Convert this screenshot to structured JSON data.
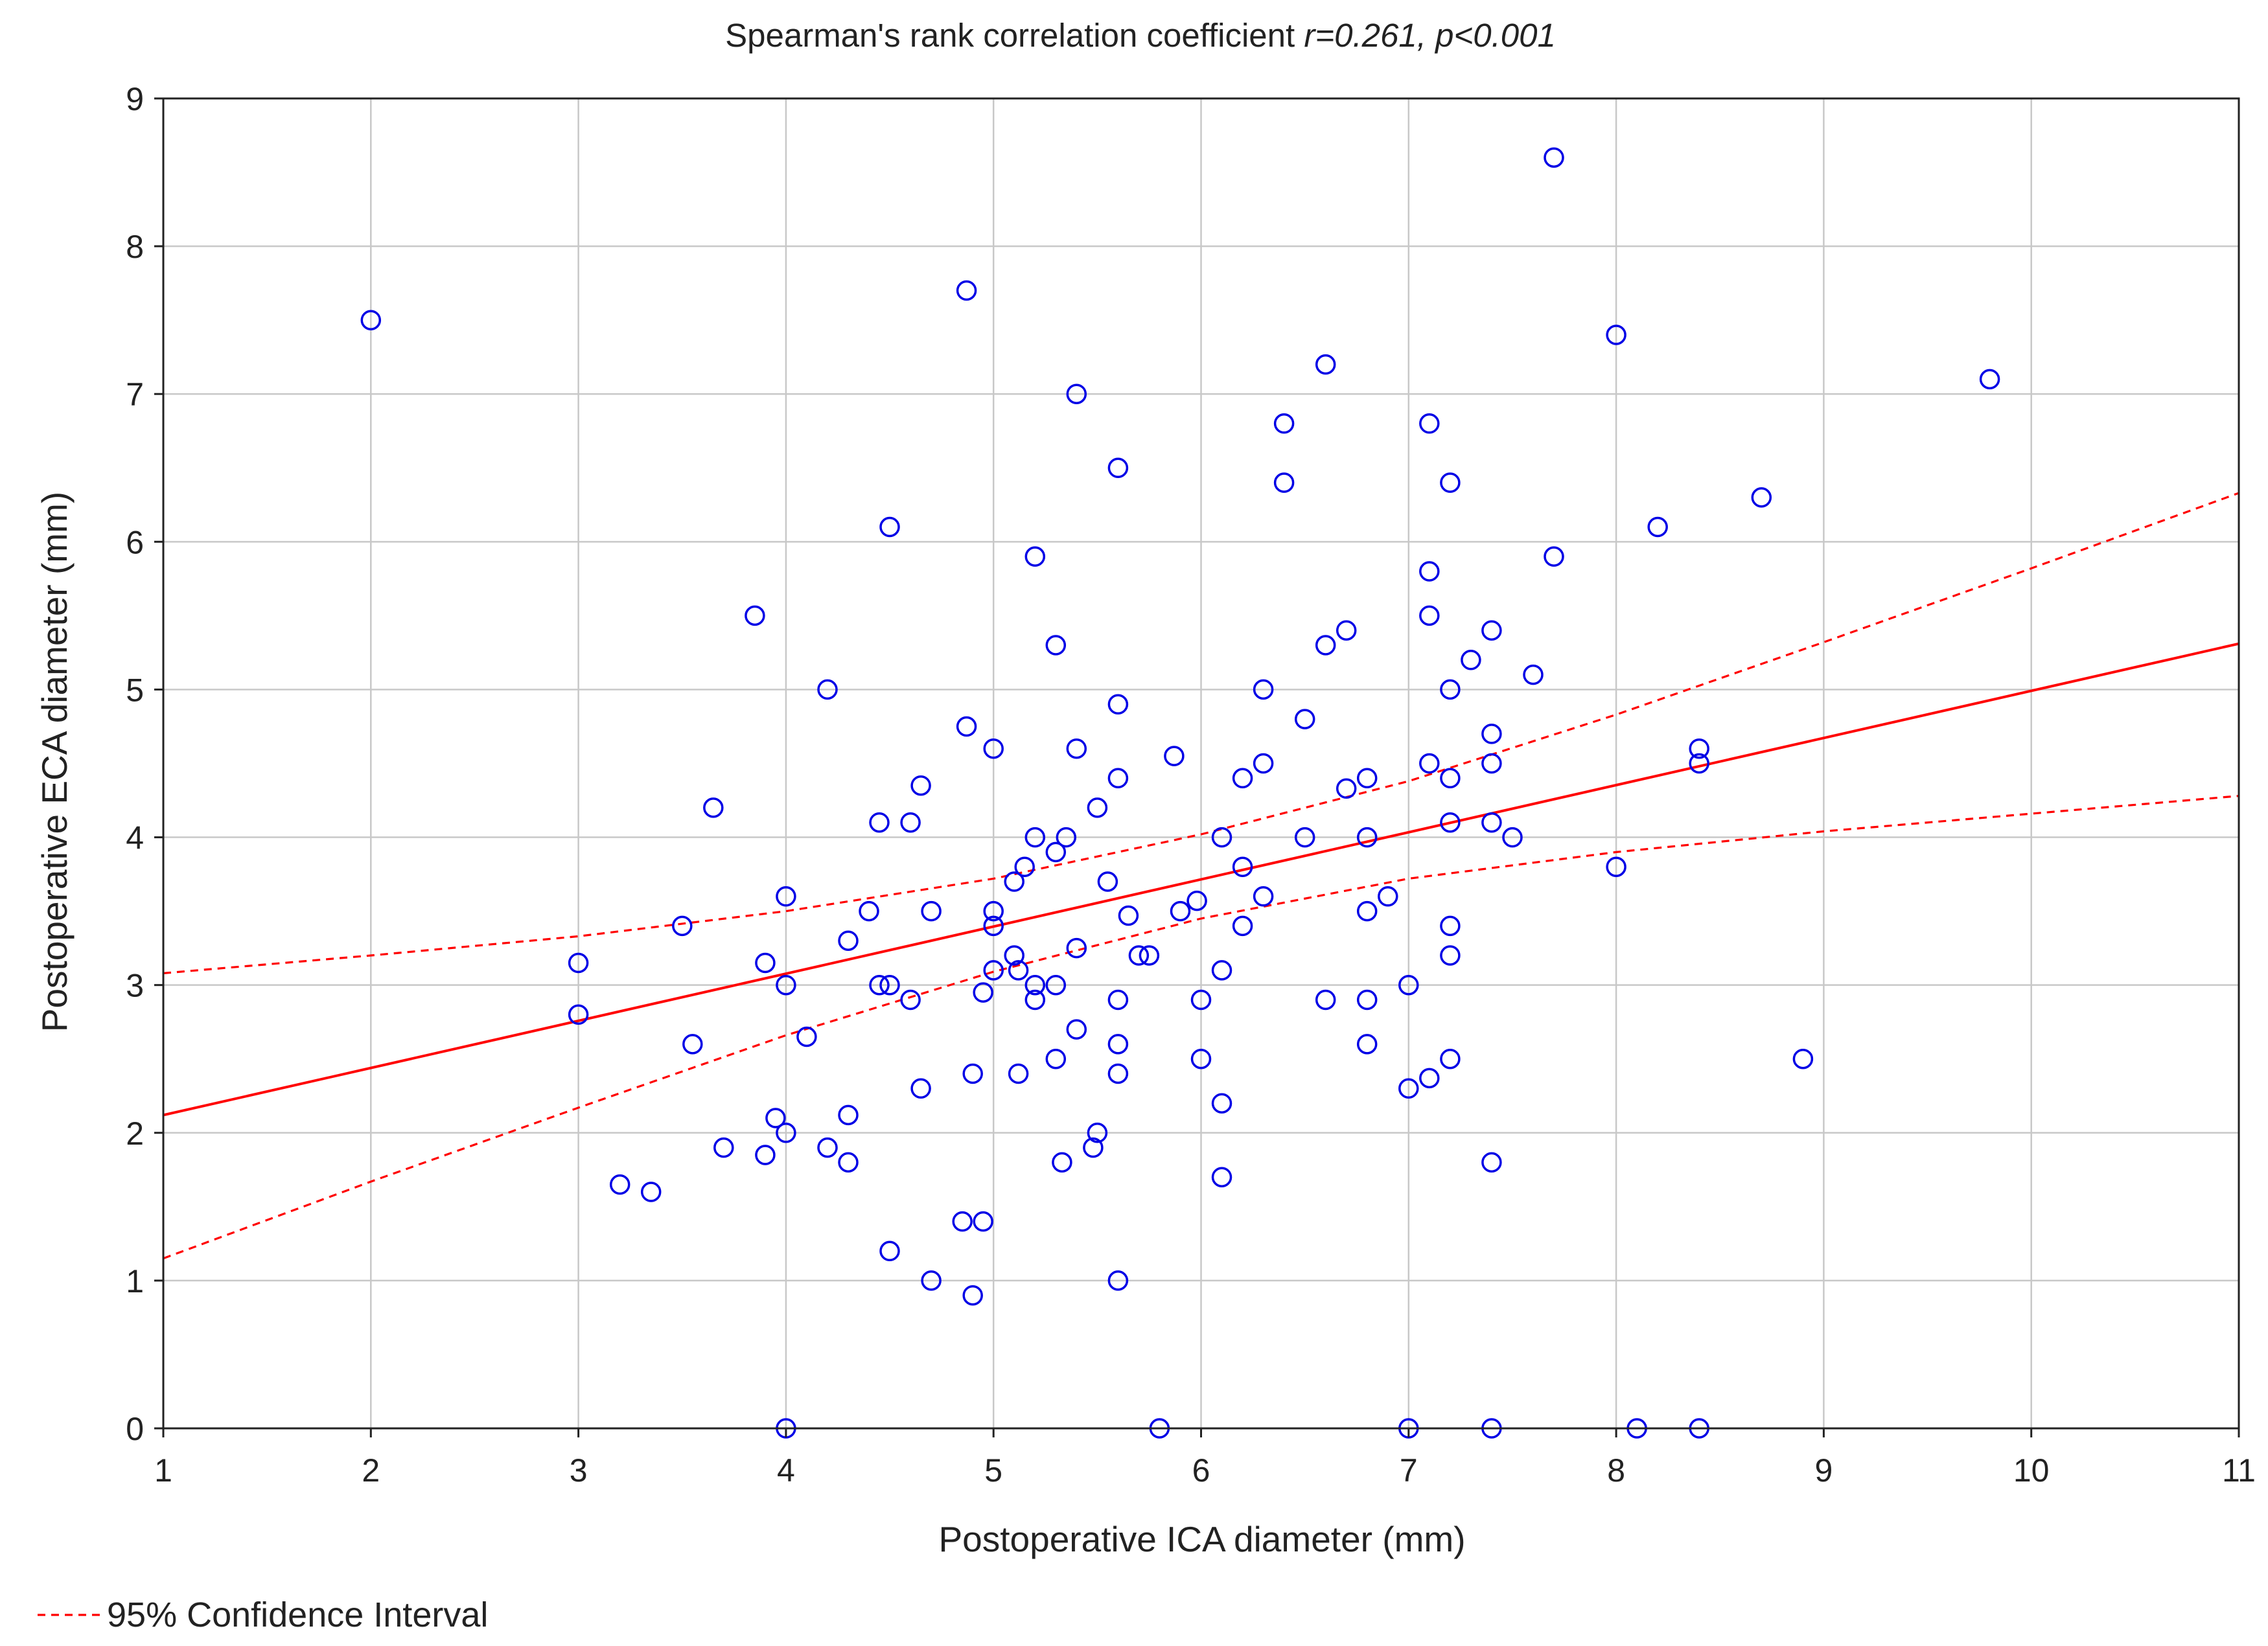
{
  "chart_data": {
    "type": "scatter",
    "title_plain": "Spearman's rank correlation coefficient ",
    "title_italic": "r=0.261, p<0.001",
    "xlabel": "Postoperative ICA diameter (mm)",
    "ylabel": "Postoperative ECA diameter (mm)",
    "xlim": [
      1,
      11
    ],
    "ylim": [
      0,
      9
    ],
    "x_ticks": [
      "1",
      "2",
      "3",
      "4",
      "5",
      "6",
      "7",
      "8",
      "9",
      "10",
      "11"
    ],
    "y_ticks": [
      "0",
      "1",
      "2",
      "3",
      "4",
      "5",
      "6",
      "7",
      "8",
      "9"
    ],
    "grid": true,
    "legend": {
      "position": "bottom-left",
      "label": "95% Confidence Interval"
    },
    "fit_line": {
      "x": [
        1,
        11
      ],
      "y": [
        2.12,
        5.31
      ]
    },
    "ci_upper": {
      "x": [
        1,
        2,
        3,
        4,
        5,
        6,
        7,
        8,
        9,
        10,
        11
      ],
      "y": [
        3.08,
        3.2,
        3.33,
        3.5,
        3.72,
        4.02,
        4.38,
        4.83,
        5.32,
        5.82,
        6.33
      ]
    },
    "ci_lower": {
      "x": [
        1,
        2,
        3,
        4,
        5,
        6,
        7,
        8,
        9,
        10,
        11
      ],
      "y": [
        1.15,
        1.67,
        2.17,
        2.66,
        3.09,
        3.45,
        3.72,
        3.9,
        4.04,
        4.16,
        4.28
      ]
    },
    "points": [
      [
        2.0,
        7.5
      ],
      [
        3.0,
        3.15
      ],
      [
        3.0,
        2.8
      ],
      [
        3.2,
        1.65
      ],
      [
        3.35,
        1.6
      ],
      [
        3.5,
        3.4
      ],
      [
        3.55,
        2.6
      ],
      [
        3.65,
        4.2
      ],
      [
        3.7,
        1.9
      ],
      [
        3.85,
        5.5
      ],
      [
        3.9,
        3.15
      ],
      [
        3.9,
        1.85
      ],
      [
        3.95,
        2.1
      ],
      [
        4.0,
        3.6
      ],
      [
        4.0,
        3.0
      ],
      [
        4.0,
        2.0
      ],
      [
        4.0,
        0.0
      ],
      [
        4.1,
        2.65
      ],
      [
        4.2,
        5.0
      ],
      [
        4.2,
        1.9
      ],
      [
        4.3,
        3.3
      ],
      [
        4.3,
        2.12
      ],
      [
        4.3,
        1.8
      ],
      [
        4.4,
        3.5
      ],
      [
        4.45,
        4.1
      ],
      [
        4.45,
        3.0
      ],
      [
        4.5,
        6.1
      ],
      [
        4.5,
        3.0
      ],
      [
        4.5,
        1.2
      ],
      [
        4.6,
        4.1
      ],
      [
        4.6,
        2.9
      ],
      [
        4.65,
        4.35
      ],
      [
        4.65,
        2.3
      ],
      [
        4.7,
        3.5
      ],
      [
        4.7,
        1.0
      ],
      [
        4.85,
        1.4
      ],
      [
        4.87,
        7.7
      ],
      [
        4.87,
        4.75
      ],
      [
        4.9,
        2.4
      ],
      [
        4.9,
        0.9
      ],
      [
        4.95,
        2.95
      ],
      [
        4.95,
        1.4
      ],
      [
        5.0,
        4.6
      ],
      [
        5.0,
        3.5
      ],
      [
        5.0,
        3.4
      ],
      [
        5.0,
        3.1
      ],
      [
        5.1,
        3.7
      ],
      [
        5.1,
        3.2
      ],
      [
        5.12,
        3.1
      ],
      [
        5.12,
        2.4
      ],
      [
        5.15,
        3.8
      ],
      [
        5.2,
        5.9
      ],
      [
        5.2,
        4.0
      ],
      [
        5.2,
        3.0
      ],
      [
        5.2,
        2.9
      ],
      [
        5.3,
        5.3
      ],
      [
        5.3,
        3.9
      ],
      [
        5.3,
        3.0
      ],
      [
        5.3,
        2.5
      ],
      [
        5.33,
        1.8
      ],
      [
        5.35,
        4.0
      ],
      [
        5.4,
        7.0
      ],
      [
        5.4,
        4.6
      ],
      [
        5.4,
        3.25
      ],
      [
        5.4,
        2.7
      ],
      [
        5.5,
        4.2
      ],
      [
        5.5,
        2.0
      ],
      [
        5.48,
        1.9
      ],
      [
        5.55,
        3.7
      ],
      [
        5.6,
        6.5
      ],
      [
        5.6,
        4.9
      ],
      [
        5.6,
        4.4
      ],
      [
        5.6,
        2.9
      ],
      [
        5.6,
        2.6
      ],
      [
        5.6,
        2.4
      ],
      [
        5.6,
        1.0
      ],
      [
        5.65,
        3.47
      ],
      [
        5.7,
        3.2
      ],
      [
        5.75,
        3.2
      ],
      [
        5.8,
        0.0
      ],
      [
        5.87,
        4.55
      ],
      [
        5.9,
        3.5
      ],
      [
        5.98,
        3.57
      ],
      [
        6.0,
        2.9
      ],
      [
        6.0,
        2.5
      ],
      [
        6.1,
        4.0
      ],
      [
        6.1,
        3.1
      ],
      [
        6.1,
        2.2
      ],
      [
        6.1,
        1.7
      ],
      [
        6.2,
        4.4
      ],
      [
        6.2,
        3.8
      ],
      [
        6.2,
        3.4
      ],
      [
        6.3,
        5.0
      ],
      [
        6.3,
        4.5
      ],
      [
        6.3,
        3.6
      ],
      [
        6.4,
        6.8
      ],
      [
        6.4,
        6.4
      ],
      [
        6.5,
        4.8
      ],
      [
        6.5,
        4.0
      ],
      [
        6.6,
        7.2
      ],
      [
        6.6,
        5.3
      ],
      [
        6.6,
        2.9
      ],
      [
        6.7,
        5.4
      ],
      [
        6.7,
        4.33
      ],
      [
        6.8,
        4.4
      ],
      [
        6.8,
        4.0
      ],
      [
        6.8,
        3.5
      ],
      [
        6.8,
        2.9
      ],
      [
        6.8,
        2.6
      ],
      [
        6.9,
        3.6
      ],
      [
        7.0,
        3.0
      ],
      [
        7.0,
        2.3
      ],
      [
        7.0,
        0.0
      ],
      [
        7.1,
        6.8
      ],
      [
        7.1,
        5.8
      ],
      [
        7.1,
        5.5
      ],
      [
        7.1,
        4.5
      ],
      [
        7.1,
        2.37
      ],
      [
        7.2,
        6.4
      ],
      [
        7.2,
        5.0
      ],
      [
        7.2,
        4.4
      ],
      [
        7.2,
        4.1
      ],
      [
        7.2,
        3.4
      ],
      [
        7.2,
        3.2
      ],
      [
        7.2,
        2.5
      ],
      [
        7.3,
        5.2
      ],
      [
        7.4,
        5.4
      ],
      [
        7.4,
        4.7
      ],
      [
        7.4,
        4.5
      ],
      [
        7.4,
        4.1
      ],
      [
        7.4,
        1.8
      ],
      [
        7.4,
        0.0
      ],
      [
        7.5,
        4.0
      ],
      [
        7.6,
        5.1
      ],
      [
        7.7,
        8.6
      ],
      [
        7.7,
        5.9
      ],
      [
        8.0,
        7.4
      ],
      [
        8.0,
        3.8
      ],
      [
        8.1,
        0.0
      ],
      [
        8.2,
        6.1
      ],
      [
        8.4,
        4.6
      ],
      [
        8.4,
        4.5
      ],
      [
        8.4,
        0.0
      ],
      [
        8.7,
        6.3
      ],
      [
        8.9,
        2.5
      ],
      [
        9.8,
        7.1
      ]
    ]
  }
}
